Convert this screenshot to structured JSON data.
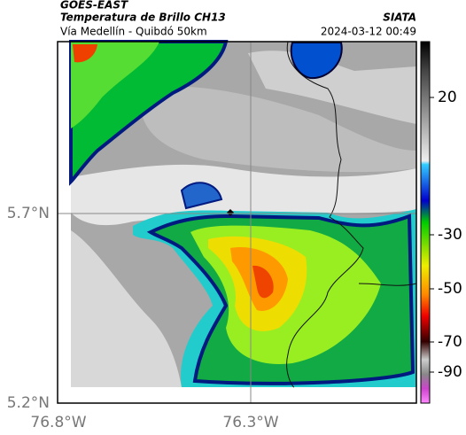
{
  "header": {
    "source": "GOES-EAST",
    "title": "Temperatura de Brillo CH13",
    "subtitle": "Vía Medellín - Quibdó 50km",
    "agency": "SIATA",
    "datetime": "2024-03-12 00:49"
  },
  "map": {
    "lat_labels": [
      "5.7°N",
      "5.2°N"
    ],
    "lon_labels": [
      "76.8°W",
      "76.3°W"
    ]
  },
  "colorbar": {
    "ticks": [
      20,
      -30,
      -50,
      -70,
      -90
    ]
  }
}
